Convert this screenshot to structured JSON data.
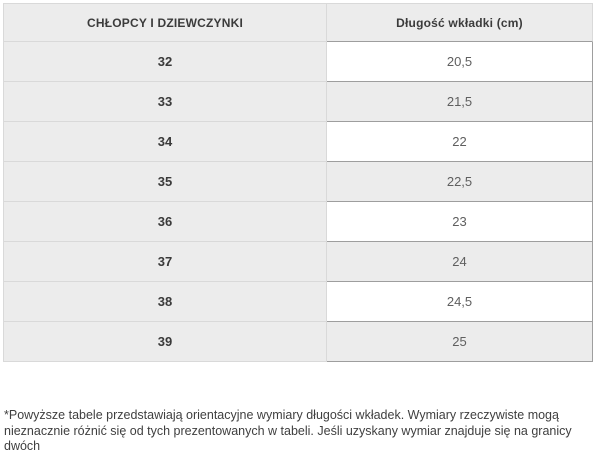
{
  "table": {
    "headers": [
      {
        "label": "CHŁOPCY I DZIEWCZYNKI"
      },
      {
        "label": "Długość wkładki (cm)"
      }
    ],
    "rows": [
      {
        "size": "32",
        "length": "20,5"
      },
      {
        "size": "33",
        "length": "21,5"
      },
      {
        "size": "34",
        "length": "22"
      },
      {
        "size": "35",
        "length": "22,5"
      },
      {
        "size": "36",
        "length": "23"
      },
      {
        "size": "37",
        "length": "24"
      },
      {
        "size": "38",
        "length": "24,5"
      },
      {
        "size": "39",
        "length": "25"
      }
    ]
  },
  "footnote": {
    "text": "*Powyższe tabele przedstawiają orientacyjne wymiary długości wkładek. Wymiary rzeczywiste mogą\nnieznacznie różnić się od tych prezentowanych w tabeli. Jeśli uzyskany wymiar znajduje się na granicy dwóch\nrozmiarów zalecamy wybór większego rozmiaru obuwia."
  },
  "colors": {
    "cell_gray": "#ececec",
    "border_light": "#d9d9d9",
    "border_dark": "#9e9e9e",
    "text_dark": "#3b3b3b",
    "text_value": "#5f5f5f"
  }
}
